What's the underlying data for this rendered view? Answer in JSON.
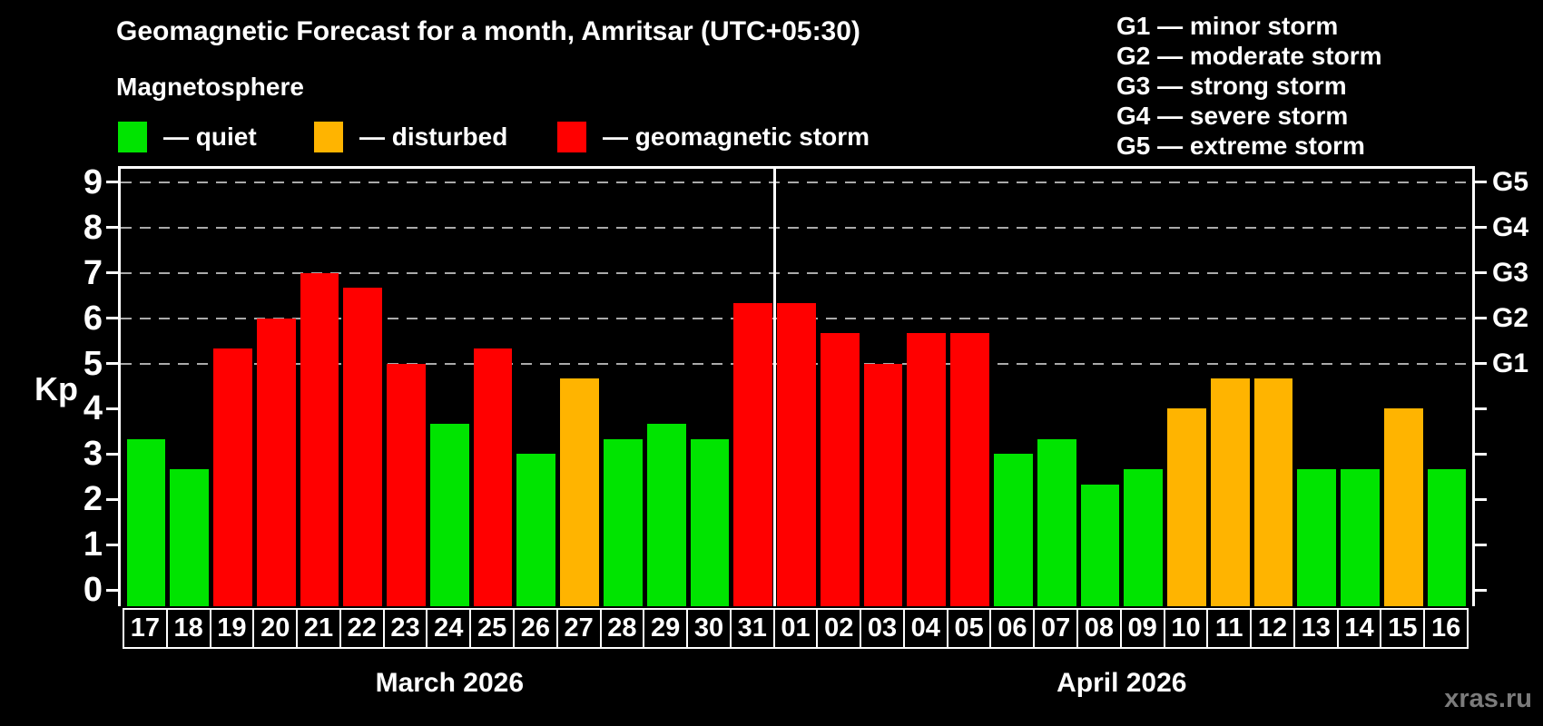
{
  "header": {
    "title": "Geomagnetic Forecast for a month, Amritsar (UTC+05:30)",
    "subtitle": "Magnetosphere"
  },
  "legend": [
    {
      "status": "quiet",
      "label": "— quiet"
    },
    {
      "status": "disturbed",
      "label": "— disturbed"
    },
    {
      "status": "storm",
      "label": "— geomagnetic storm"
    }
  ],
  "g_scale_legend": [
    "G1 — minor storm",
    "G2 — moderate storm",
    "G3 — strong storm",
    "G4 — severe storm",
    "G5 — extreme storm"
  ],
  "watermark": "xras.ru",
  "colors": {
    "quiet": "#00e400",
    "disturbed": "#ffb400",
    "storm": "#ff0000",
    "background": "#000000",
    "axis": "#ffffff",
    "gridline": "#aaaaaa",
    "watermark": "#7b7b7b"
  },
  "chart_data": {
    "type": "bar",
    "ylabel": "Kp",
    "ylim": [
      0,
      9.4
    ],
    "yticks": [
      0,
      1,
      2,
      3,
      4,
      5,
      6,
      7,
      8,
      9
    ],
    "gridlines": [
      5,
      6,
      7,
      8,
      9
    ],
    "grid_style": "dashed",
    "legend_position": "top",
    "right_axis_labels": [
      {
        "value": 5,
        "label": "G1"
      },
      {
        "value": 6,
        "label": "G2"
      },
      {
        "value": 7,
        "label": "G3"
      },
      {
        "value": 8,
        "label": "G4"
      },
      {
        "value": 9,
        "label": "G5"
      }
    ],
    "months": [
      {
        "label": "March 2026",
        "days": [
          {
            "day": "17",
            "kp": 3.33,
            "status": "quiet"
          },
          {
            "day": "18",
            "kp": 2.67,
            "status": "quiet"
          },
          {
            "day": "19",
            "kp": 5.33,
            "status": "storm"
          },
          {
            "day": "20",
            "kp": 6.0,
            "status": "storm"
          },
          {
            "day": "21",
            "kp": 7.0,
            "status": "storm"
          },
          {
            "day": "22",
            "kp": 6.67,
            "status": "storm"
          },
          {
            "day": "23",
            "kp": 5.0,
            "status": "storm"
          },
          {
            "day": "24",
            "kp": 3.67,
            "status": "quiet"
          },
          {
            "day": "25",
            "kp": 5.33,
            "status": "storm"
          },
          {
            "day": "26",
            "kp": 3.0,
            "status": "quiet"
          },
          {
            "day": "27",
            "kp": 4.67,
            "status": "disturbed"
          },
          {
            "day": "28",
            "kp": 3.33,
            "status": "quiet"
          },
          {
            "day": "29",
            "kp": 3.67,
            "status": "quiet"
          },
          {
            "day": "30",
            "kp": 3.33,
            "status": "quiet"
          },
          {
            "day": "31",
            "kp": 6.33,
            "status": "storm"
          }
        ]
      },
      {
        "label": "April 2026",
        "days": [
          {
            "day": "01",
            "kp": 6.33,
            "status": "storm"
          },
          {
            "day": "02",
            "kp": 5.67,
            "status": "storm"
          },
          {
            "day": "03",
            "kp": 5.0,
            "status": "storm"
          },
          {
            "day": "04",
            "kp": 5.67,
            "status": "storm"
          },
          {
            "day": "05",
            "kp": 5.67,
            "status": "storm"
          },
          {
            "day": "06",
            "kp": 3.0,
            "status": "quiet"
          },
          {
            "day": "07",
            "kp": 3.33,
            "status": "quiet"
          },
          {
            "day": "08",
            "kp": 2.33,
            "status": "quiet"
          },
          {
            "day": "09",
            "kp": 2.67,
            "status": "quiet"
          },
          {
            "day": "10",
            "kp": 4.0,
            "status": "disturbed"
          },
          {
            "day": "11",
            "kp": 4.67,
            "status": "disturbed"
          },
          {
            "day": "12",
            "kp": 4.67,
            "status": "disturbed"
          },
          {
            "day": "13",
            "kp": 2.67,
            "status": "quiet"
          },
          {
            "day": "14",
            "kp": 2.67,
            "status": "quiet"
          },
          {
            "day": "15",
            "kp": 4.0,
            "status": "disturbed"
          },
          {
            "day": "16",
            "kp": 2.67,
            "status": "quiet"
          }
        ]
      }
    ]
  }
}
